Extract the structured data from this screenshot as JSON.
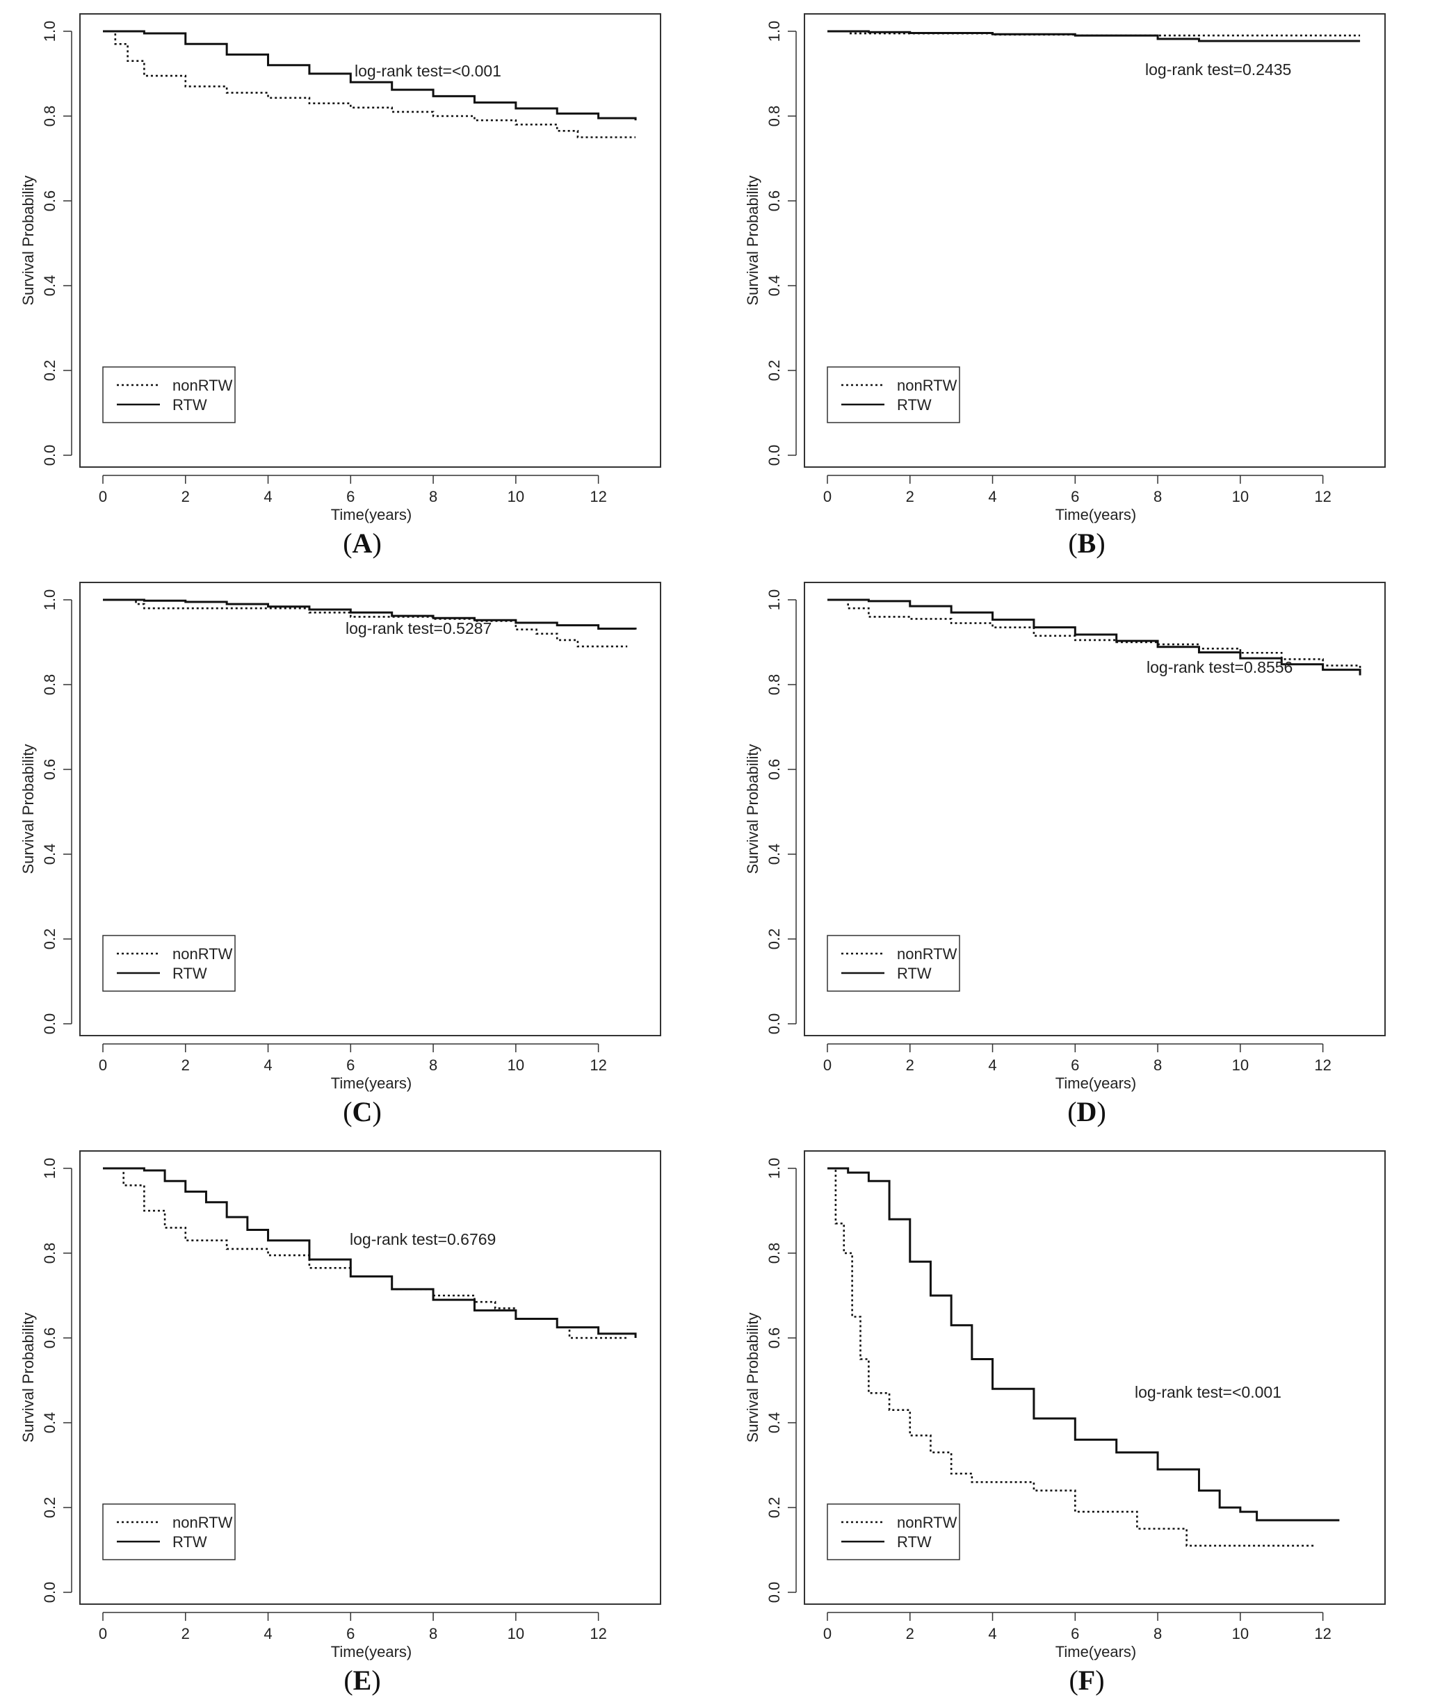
{
  "figure": {
    "caption_format": "(X)",
    "panel_labels": [
      "A",
      "B",
      "C",
      "D",
      "E",
      "F"
    ]
  },
  "chart_data": [
    {
      "type": "line",
      "panel": "A",
      "ylabel": "Survival Probability",
      "xlabel": "Time(years)",
      "xlim": [
        0,
        13
      ],
      "ylim": [
        0,
        1
      ],
      "xticks": [
        0,
        2,
        4,
        6,
        8,
        10,
        12
      ],
      "yticks": [
        0.0,
        0.2,
        0.4,
        0.6,
        0.8,
        1.0
      ],
      "annotation": "log-rank test=<0.001",
      "legend": [
        "nonRTW",
        "RTW"
      ],
      "series": [
        {
          "name": "nonRTW",
          "style": "dotted",
          "x": [
            0,
            0.3,
            0.6,
            1,
            2,
            3,
            4,
            5,
            6,
            7,
            8,
            9,
            10,
            11,
            11.5,
            12.9
          ],
          "y": [
            1,
            0.97,
            0.93,
            0.895,
            0.87,
            0.855,
            0.843,
            0.83,
            0.82,
            0.81,
            0.8,
            0.79,
            0.78,
            0.765,
            0.75,
            0.75
          ]
        },
        {
          "name": "RTW",
          "style": "solid",
          "x": [
            0,
            1,
            2,
            3,
            4,
            5,
            6,
            7,
            8,
            9,
            10,
            11,
            12,
            12.9
          ],
          "y": [
            1,
            0.995,
            0.97,
            0.945,
            0.92,
            0.9,
            0.88,
            0.862,
            0.847,
            0.832,
            0.818,
            0.806,
            0.795,
            0.79
          ]
        }
      ]
    },
    {
      "type": "line",
      "panel": "B",
      "ylabel": "Survival Probability",
      "xlabel": "Time(years)",
      "xlim": [
        0,
        13
      ],
      "ylim": [
        0,
        1
      ],
      "xticks": [
        0,
        2,
        4,
        6,
        8,
        10,
        12
      ],
      "yticks": [
        0.0,
        0.2,
        0.4,
        0.6,
        0.8,
        1.0
      ],
      "annotation": "log-rank test=0.2435",
      "legend": [
        "nonRTW",
        "RTW"
      ],
      "series": [
        {
          "name": "nonRTW",
          "style": "dotted",
          "x": [
            0,
            0.5,
            2,
            4,
            6,
            8,
            10,
            12.9
          ],
          "y": [
            1,
            0.995,
            0.995,
            0.992,
            0.99,
            0.99,
            0.99,
            0.99
          ]
        },
        {
          "name": "RTW",
          "style": "solid",
          "x": [
            0,
            1,
            2,
            4,
            6,
            8,
            9,
            10,
            12.9
          ],
          "y": [
            1,
            0.998,
            0.996,
            0.993,
            0.99,
            0.982,
            0.977,
            0.977,
            0.977
          ]
        }
      ]
    },
    {
      "type": "line",
      "panel": "C",
      "ylabel": "Survival Probability",
      "xlabel": "Time(years)",
      "xlim": [
        0,
        13
      ],
      "ylim": [
        0,
        1
      ],
      "xticks": [
        0,
        2,
        4,
        6,
        8,
        10,
        12
      ],
      "yticks": [
        0.0,
        0.2,
        0.4,
        0.6,
        0.8,
        1.0
      ],
      "annotation": "log-rank test=0.5287",
      "legend": [
        "nonRTW",
        "RTW"
      ],
      "series": [
        {
          "name": "nonRTW",
          "style": "dotted",
          "x": [
            0,
            0.8,
            1,
            3,
            5,
            6,
            8,
            9,
            10,
            10.5,
            11,
            11.5,
            12.7
          ],
          "y": [
            1,
            0.99,
            0.98,
            0.98,
            0.97,
            0.96,
            0.955,
            0.95,
            0.93,
            0.92,
            0.905,
            0.89,
            0.89
          ]
        },
        {
          "name": "RTW",
          "style": "solid",
          "x": [
            0,
            1,
            2,
            3,
            4,
            5,
            6,
            7,
            8,
            9,
            10,
            11,
            12,
            12.9
          ],
          "y": [
            1,
            0.998,
            0.995,
            0.99,
            0.984,
            0.977,
            0.97,
            0.962,
            0.957,
            0.952,
            0.946,
            0.94,
            0.932,
            0.93
          ]
        }
      ]
    },
    {
      "type": "line",
      "panel": "D",
      "ylabel": "Survival Probability",
      "xlabel": "Time(years)",
      "xlim": [
        0,
        13
      ],
      "ylim": [
        0,
        1
      ],
      "xticks": [
        0,
        2,
        4,
        6,
        8,
        10,
        12
      ],
      "yticks": [
        0.0,
        0.2,
        0.4,
        0.6,
        0.8,
        1.0
      ],
      "annotation": "log-rank test=0.8556",
      "legend": [
        "nonRTW",
        "RTW"
      ],
      "series": [
        {
          "name": "nonRTW",
          "style": "dotted",
          "x": [
            0,
            0.5,
            1,
            2,
            3,
            4,
            5,
            6,
            7,
            8,
            9,
            10,
            11,
            12,
            12.9
          ],
          "y": [
            1,
            0.98,
            0.96,
            0.955,
            0.945,
            0.935,
            0.915,
            0.905,
            0.9,
            0.895,
            0.885,
            0.875,
            0.86,
            0.845,
            0.835
          ]
        },
        {
          "name": "RTW",
          "style": "solid",
          "x": [
            0,
            1,
            2,
            3,
            4,
            5,
            6,
            7,
            8,
            9,
            10,
            11,
            12,
            12.9
          ],
          "y": [
            1,
            0.997,
            0.985,
            0.97,
            0.953,
            0.935,
            0.918,
            0.903,
            0.889,
            0.876,
            0.862,
            0.848,
            0.835,
            0.822
          ]
        }
      ]
    },
    {
      "type": "line",
      "panel": "E",
      "ylabel": "Survival Probability",
      "xlabel": "Time(years)",
      "xlim": [
        0,
        13
      ],
      "ylim": [
        0,
        1
      ],
      "xticks": [
        0,
        2,
        4,
        6,
        8,
        10,
        12
      ],
      "yticks": [
        0.0,
        0.2,
        0.4,
        0.6,
        0.8,
        1.0
      ],
      "annotation": "log-rank test=0.6769",
      "legend": [
        "nonRTW",
        "RTW"
      ],
      "series": [
        {
          "name": "nonRTW",
          "style": "dotted",
          "x": [
            0,
            0.5,
            1,
            1.5,
            2,
            3,
            4,
            5,
            6,
            7,
            8,
            9,
            9.5,
            10,
            11,
            11.3,
            12.7
          ],
          "y": [
            1,
            0.96,
            0.9,
            0.86,
            0.83,
            0.81,
            0.795,
            0.765,
            0.745,
            0.715,
            0.7,
            0.685,
            0.67,
            0.645,
            0.625,
            0.6,
            0.6
          ]
        },
        {
          "name": "RTW",
          "style": "solid",
          "x": [
            0,
            1,
            1.5,
            2,
            2.5,
            3,
            3.5,
            4,
            5,
            6,
            7,
            8,
            9,
            10,
            11,
            12,
            12.9
          ],
          "y": [
            1,
            0.995,
            0.97,
            0.945,
            0.92,
            0.885,
            0.855,
            0.83,
            0.785,
            0.745,
            0.715,
            0.69,
            0.665,
            0.645,
            0.625,
            0.61,
            0.6
          ]
        }
      ]
    },
    {
      "type": "line",
      "panel": "F",
      "ylabel": "Survival Probability",
      "xlabel": "Time(years)",
      "xlim": [
        0,
        13
      ],
      "ylim": [
        0,
        1
      ],
      "xticks": [
        0,
        2,
        4,
        6,
        8,
        10,
        12
      ],
      "yticks": [
        0.0,
        0.2,
        0.4,
        0.6,
        0.8,
        1.0
      ],
      "annotation": "log-rank test=<0.001",
      "legend": [
        "nonRTW",
        "RTW"
      ],
      "series": [
        {
          "name": "nonRTW",
          "style": "dotted",
          "x": [
            0,
            0.2,
            0.4,
            0.6,
            0.8,
            1,
            1.5,
            2,
            2.5,
            3,
            3.5,
            4,
            5,
            6,
            7,
            7.5,
            8.5,
            8.7,
            11.8
          ],
          "y": [
            1,
            0.87,
            0.8,
            0.65,
            0.55,
            0.47,
            0.43,
            0.37,
            0.33,
            0.28,
            0.26,
            0.26,
            0.24,
            0.19,
            0.19,
            0.15,
            0.15,
            0.11,
            0.11
          ]
        },
        {
          "name": "RTW",
          "style": "solid",
          "x": [
            0,
            0.5,
            1,
            1.5,
            2,
            2.5,
            3,
            3.5,
            4,
            5,
            6,
            7,
            8,
            9,
            9.5,
            10,
            10.4,
            12.4
          ],
          "y": [
            1,
            0.99,
            0.97,
            0.88,
            0.78,
            0.7,
            0.63,
            0.55,
            0.48,
            0.41,
            0.36,
            0.33,
            0.29,
            0.24,
            0.2,
            0.19,
            0.17,
            0.17
          ]
        }
      ]
    }
  ]
}
